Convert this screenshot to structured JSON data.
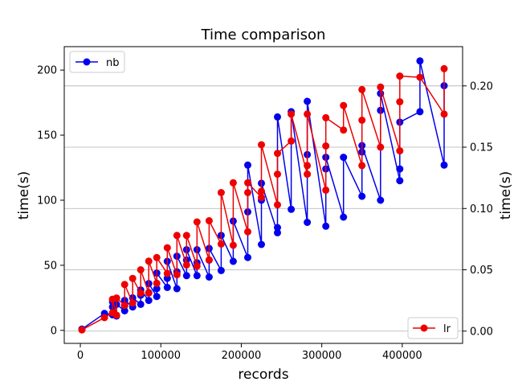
{
  "chart_data": {
    "type": "line",
    "title": "Time comparison",
    "xlabel": "records",
    "ylabel_left": "time(s)",
    "ylabel_right": "time(s)",
    "xlim": [
      -20000,
      475000
    ],
    "ylim_left": [
      -10,
      218
    ],
    "ylim_right": [
      -0.01,
      0.232
    ],
    "x_ticks": [
      0,
      100000,
      200000,
      300000,
      400000
    ],
    "x_tick_labels": [
      "0",
      "100000",
      "200000",
      "300000",
      "400000"
    ],
    "y_left_ticks": [
      0,
      50,
      100,
      150,
      200
    ],
    "y_left_tick_labels": [
      "0",
      "50",
      "100",
      "150",
      "200"
    ],
    "y_right_ticks": [
      0.0,
      0.05,
      0.1,
      0.15,
      0.2
    ],
    "y_right_tick_labels": [
      "0.00",
      "0.05",
      "0.10",
      "0.15",
      "0.20"
    ],
    "grid": "horizontal (right axis)",
    "series": [
      {
        "name": "nb",
        "axis": "left",
        "color": "#0000ee",
        "legend_position": "top-left",
        "x": [
          2000,
          30000,
          40000,
          40000,
          40000,
          45000,
          45000,
          55000,
          55000,
          55000,
          65000,
          65000,
          75000,
          75000,
          75000,
          85000,
          85000,
          85000,
          95000,
          95000,
          95000,
          108000,
          108000,
          108000,
          120000,
          120000,
          120000,
          132000,
          132000,
          132000,
          145000,
          145000,
          145000,
          160000,
          160000,
          160000,
          175000,
          175000,
          190000,
          190000,
          208000,
          208000,
          208000,
          225000,
          225000,
          225000,
          245000,
          245000,
          245000,
          262000,
          262000,
          282000,
          282000,
          282000,
          305000,
          305000,
          305000,
          327000,
          327000,
          350000,
          350000,
          350000,
          373000,
          373000,
          373000,
          397000,
          397000,
          397000,
          422000,
          422000,
          452000,
          452000
        ],
        "y": [
          1,
          13,
          12,
          18,
          22,
          11,
          20,
          15,
          19,
          23,
          18,
          25,
          20,
          27,
          31,
          23,
          29,
          36,
          26,
          32,
          44,
          33,
          40,
          53,
          32,
          45,
          57,
          42,
          54,
          62,
          42,
          52,
          62,
          41,
          54,
          63,
          46,
          73,
          53,
          84,
          56,
          91,
          127,
          66,
          100,
          113,
          75,
          79,
          164,
          93,
          168,
          83,
          135,
          176,
          80,
          124,
          133,
          87,
          133,
          103,
          137,
          142,
          100,
          169,
          182,
          115,
          124,
          160,
          168,
          207,
          127,
          188
        ]
      },
      {
        "name": "lr",
        "axis": "right",
        "color": "#ee0000",
        "legend_position": "bottom-right",
        "x": [
          2000,
          30000,
          40000,
          40000,
          45000,
          45000,
          55000,
          55000,
          65000,
          65000,
          75000,
          75000,
          85000,
          85000,
          95000,
          95000,
          108000,
          108000,
          120000,
          120000,
          132000,
          132000,
          145000,
          145000,
          160000,
          160000,
          175000,
          175000,
          190000,
          190000,
          208000,
          208000,
          208000,
          225000,
          225000,
          225000,
          245000,
          245000,
          245000,
          262000,
          262000,
          282000,
          282000,
          282000,
          305000,
          305000,
          305000,
          327000,
          327000,
          350000,
          350000,
          350000,
          373000,
          373000,
          397000,
          397000,
          397000,
          422000,
          452000,
          452000
        ],
        "y": [
          0.001,
          0.011,
          0.015,
          0.026,
          0.013,
          0.027,
          0.021,
          0.038,
          0.023,
          0.043,
          0.031,
          0.05,
          0.031,
          0.057,
          0.039,
          0.06,
          0.047,
          0.068,
          0.046,
          0.078,
          0.054,
          0.078,
          0.053,
          0.089,
          0.058,
          0.09,
          0.071,
          0.113,
          0.07,
          0.121,
          0.081,
          0.113,
          0.121,
          0.109,
          0.114,
          0.152,
          0.103,
          0.128,
          0.145,
          0.155,
          0.177,
          0.128,
          0.135,
          0.177,
          0.115,
          0.151,
          0.174,
          0.164,
          0.184,
          0.135,
          0.172,
          0.197,
          0.15,
          0.199,
          0.147,
          0.187,
          0.208,
          0.207,
          0.177,
          0.214
        ]
      }
    ]
  }
}
